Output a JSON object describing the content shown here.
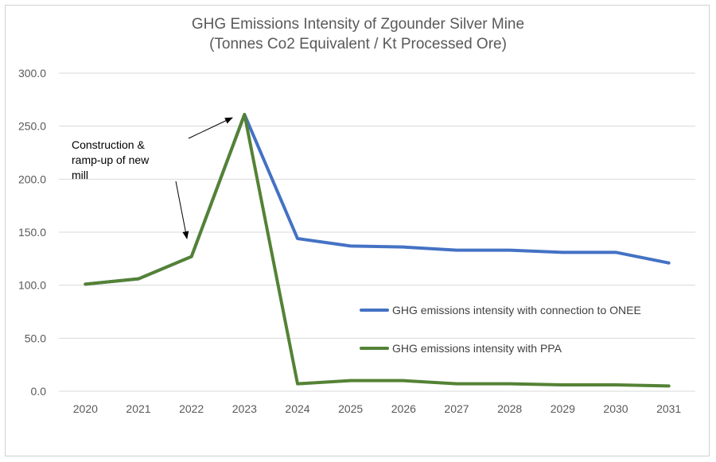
{
  "chart_data": {
    "type": "line",
    "title": "GHG Emissions Intensity of Zgounder Silver Mine",
    "subtitle": "(Tonnes Co2 Equivalent / Kt Processed Ore)",
    "categories": [
      "2020",
      "2021",
      "2022",
      "2023",
      "2024",
      "2025",
      "2026",
      "2027",
      "2028",
      "2029",
      "2030",
      "2031"
    ],
    "series": [
      {
        "name": "GHG emissions intensity with connection to ONEE",
        "color": "#4472C4",
        "values": [
          101,
          106,
          127,
          261,
          144,
          137,
          136,
          133,
          133,
          131,
          131,
          121
        ]
      },
      {
        "name": "GHG emissions intensity with PPA",
        "color": "#548235",
        "values": [
          101,
          106,
          127,
          261,
          7,
          10,
          10,
          7,
          7,
          6,
          6,
          5
        ]
      }
    ],
    "ylim": [
      0,
      300
    ],
    "y_ticks": [
      "0.0",
      "50.0",
      "100.0",
      "150.0",
      "200.0",
      "250.0",
      "300.0"
    ],
    "grid": true,
    "legend_position": "right",
    "annotation": {
      "lines": [
        "Construction &",
        "ramp-up of new",
        "mill"
      ]
    }
  }
}
